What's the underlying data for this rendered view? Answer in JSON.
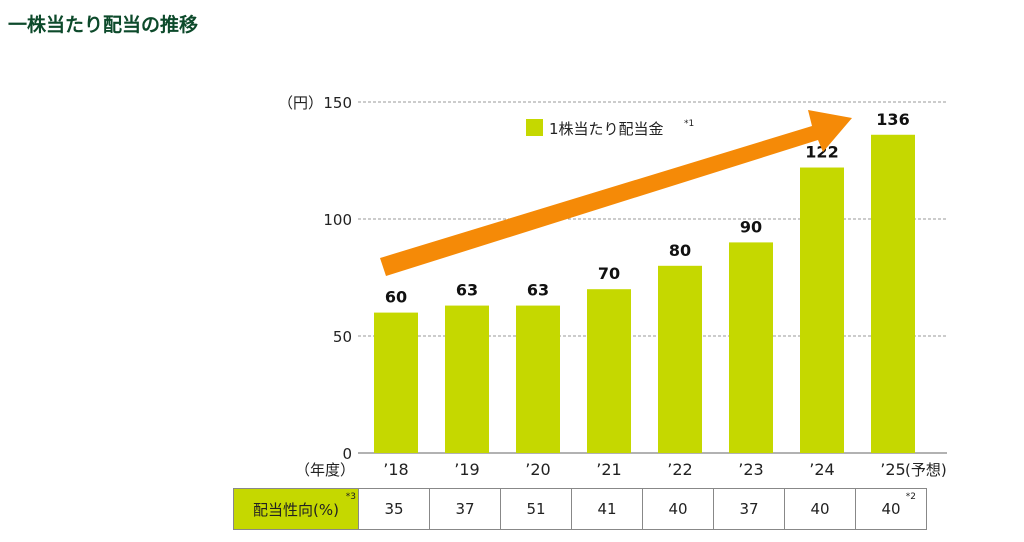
{
  "title": "一株当たり配当の推移",
  "chart_data": {
    "type": "bar",
    "unit_label": "（円）",
    "x_axis_label": "（年度）",
    "categories": [
      "’18",
      "’19",
      "’20",
      "’21",
      "’22",
      "’23",
      "’24",
      "’25"
    ],
    "forecast_suffix": "(予想)",
    "values": [
      60,
      63,
      63,
      70,
      80,
      90,
      122,
      136
    ],
    "data_labels": [
      "60",
      "63",
      "63",
      "70",
      "80",
      "90",
      "122",
      "136"
    ],
    "ylim": [
      0,
      150
    ],
    "yticks": [
      0,
      50,
      100,
      150
    ],
    "legend": {
      "label": "1株当たり配当金",
      "note": "*1",
      "placement": "top"
    },
    "bar_color": "#c5d800",
    "arrow_color": "#f58a07"
  },
  "table": {
    "header": "配当性向(%)",
    "header_note": "*3",
    "values": [
      "35",
      "37",
      "51",
      "41",
      "40",
      "37",
      "40",
      "40"
    ],
    "last_note": "*2"
  }
}
